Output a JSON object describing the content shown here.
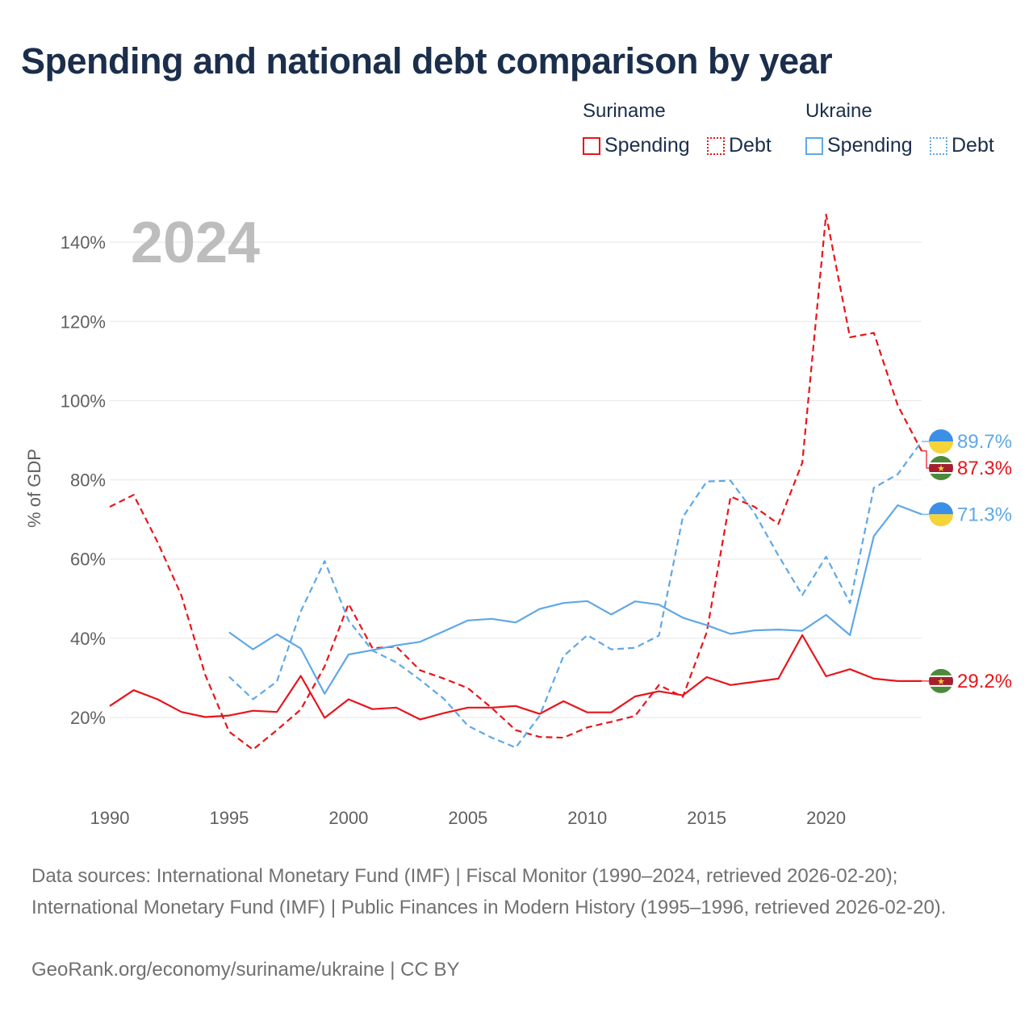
{
  "title": "Spending and national debt comparison by year",
  "legend": {
    "groups": [
      {
        "name": "Suriname",
        "items": [
          {
            "label": "Spending",
            "style": "solid",
            "color": "#e8141b"
          },
          {
            "label": "Debt",
            "style": "dotted",
            "color": "#e8141b"
          }
        ]
      },
      {
        "name": "Ukraine",
        "items": [
          {
            "label": "Spending",
            "style": "solid",
            "color": "#5fa8e6"
          },
          {
            "label": "Debt",
            "style": "dotted",
            "color": "#5fa8e6"
          }
        ]
      }
    ]
  },
  "footer": {
    "sources": "Data sources: International Monetary Fund (IMF) | Fiscal Monitor (1990–2024, retrieved 2026-02-20); International Monetary Fund (IMF) | Public Finances in Modern History (1995–1996, retrieved 2026-02-20).",
    "credit": "GeoRank.org/economy/suriname/ukraine | CC BY"
  },
  "chart_data": {
    "type": "line",
    "year_label": "2024",
    "ylabel": "% of GDP",
    "xlabel": "",
    "xlim": [
      1990,
      2024
    ],
    "ylim": [
      3.5,
      149
    ],
    "x_ticks": [
      1990,
      1995,
      2000,
      2005,
      2010,
      2015,
      2020
    ],
    "y_ticks": [
      20,
      40,
      60,
      80,
      100,
      120,
      140
    ],
    "y_tick_labels": [
      "20%",
      "40%",
      "60%",
      "80%",
      "100%",
      "120%",
      "140%"
    ],
    "series": [
      {
        "name": "Suriname Spending",
        "country": "Suriname",
        "metric": "Spending",
        "style": "solid",
        "color": "#e8141b",
        "x": [
          1990,
          1991,
          1992,
          1993,
          1994,
          1995,
          1996,
          1997,
          1998,
          1999,
          2000,
          2001,
          2002,
          2003,
          2004,
          2005,
          2006,
          2007,
          2008,
          2009,
          2010,
          2011,
          2012,
          2013,
          2014,
          2015,
          2016,
          2017,
          2018,
          2019,
          2020,
          2021,
          2022,
          2023,
          2024
        ],
        "values": [
          22.9,
          26.9,
          24.6,
          21.4,
          20.1,
          20.5,
          21.7,
          21.4,
          30.5,
          19.9,
          24.6,
          22.1,
          22.5,
          19.5,
          21.1,
          22.5,
          22.5,
          22.9,
          20.9,
          24.1,
          21.3,
          21.3,
          25.3,
          26.6,
          25.6,
          30.2,
          28.2,
          29.0,
          29.8,
          40.8,
          30.4,
          32.2,
          29.8,
          29.2,
          29.2
        ],
        "end_label": "29.2%",
        "flag": "suriname"
      },
      {
        "name": "Suriname Debt",
        "country": "Suriname",
        "metric": "Debt",
        "style": "dashed",
        "color": "#e8141b",
        "x": [
          1990,
          1991,
          1992,
          1993,
          1994,
          1995,
          1996,
          1997,
          1998,
          1999,
          2000,
          2001,
          2002,
          2003,
          2004,
          2005,
          2006,
          2007,
          2008,
          2009,
          2010,
          2011,
          2012,
          2013,
          2014,
          2015,
          2016,
          2017,
          2018,
          2019,
          2020,
          2021,
          2022,
          2023,
          2024
        ],
        "values": [
          73.2,
          76.2,
          64.3,
          50.8,
          30.7,
          16.4,
          11.9,
          16.8,
          22.0,
          32.9,
          48.7,
          37.5,
          37.9,
          31.9,
          29.8,
          27.4,
          22.4,
          16.8,
          15.1,
          14.9,
          17.5,
          18.9,
          20.4,
          28.2,
          25.2,
          41.5,
          75.8,
          73.2,
          68.9,
          84.3,
          147.0,
          116.0,
          117.1,
          98.8,
          87.3
        ],
        "end_label": "87.3%",
        "flag": "suriname"
      },
      {
        "name": "Ukraine Spending",
        "country": "Ukraine",
        "metric": "Spending",
        "style": "solid",
        "color": "#5fa8e6",
        "x": [
          1995,
          1996,
          1997,
          1998,
          1999,
          2000,
          2001,
          2002,
          2003,
          2004,
          2005,
          2006,
          2007,
          2008,
          2009,
          2010,
          2011,
          2012,
          2013,
          2014,
          2015,
          2016,
          2017,
          2018,
          2019,
          2020,
          2021,
          2022,
          2023,
          2024
        ],
        "values": [
          41.5,
          37.2,
          41.0,
          37.4,
          26.0,
          35.9,
          37.0,
          38.2,
          39.1,
          41.8,
          44.5,
          44.9,
          44.0,
          47.4,
          48.9,
          49.4,
          46.0,
          49.3,
          48.5,
          45.2,
          43.3,
          41.1,
          42.0,
          42.2,
          41.9,
          45.9,
          40.8,
          65.8,
          73.6,
          71.3
        ],
        "end_label": "71.3%",
        "flag": "ukraine"
      },
      {
        "name": "Ukraine Debt",
        "country": "Ukraine",
        "metric": "Debt",
        "style": "dashed",
        "color": "#5fa8e6",
        "x": [
          1995,
          1996,
          1997,
          1998,
          1999,
          2000,
          2001,
          2002,
          2003,
          2004,
          2005,
          2006,
          2007,
          2008,
          2009,
          2010,
          2011,
          2012,
          2013,
          2014,
          2015,
          2016,
          2017,
          2018,
          2019,
          2020,
          2021,
          2022,
          2023,
          2024
        ],
        "values": [
          30.3,
          24.6,
          29.1,
          46.8,
          59.5,
          44.5,
          36.9,
          33.9,
          29.5,
          24.7,
          17.9,
          14.9,
          12.4,
          20.4,
          35.5,
          40.8,
          37.2,
          37.6,
          40.7,
          70.6,
          79.6,
          79.8,
          71.6,
          60.9,
          50.9,
          60.6,
          48.9,
          78.0,
          81.4,
          89.7
        ],
        "end_label": "89.7%",
        "flag": "ukraine"
      }
    ]
  }
}
